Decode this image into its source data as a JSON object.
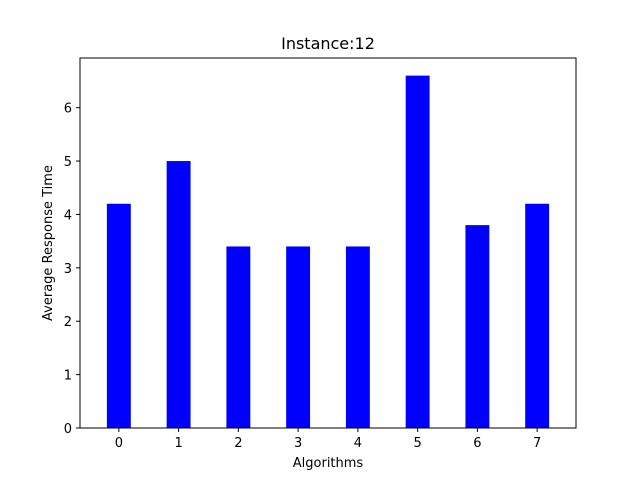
{
  "chart_data": {
    "type": "bar",
    "title": "Instance:12",
    "xlabel": "Algorithms",
    "ylabel": "Average Response Time",
    "categories": [
      "0",
      "1",
      "2",
      "3",
      "4",
      "5",
      "6",
      "7"
    ],
    "values": [
      4.2,
      5.0,
      3.4,
      3.4,
      3.4,
      6.6,
      3.8,
      4.2
    ],
    "yticks": [
      "0",
      "1",
      "2",
      "3",
      "4",
      "5",
      "6"
    ],
    "ylim": [
      0,
      6.93
    ],
    "xlim": [
      -0.65,
      7.65
    ],
    "bar_color": "#0000ff",
    "grid": false,
    "legend": "none"
  }
}
